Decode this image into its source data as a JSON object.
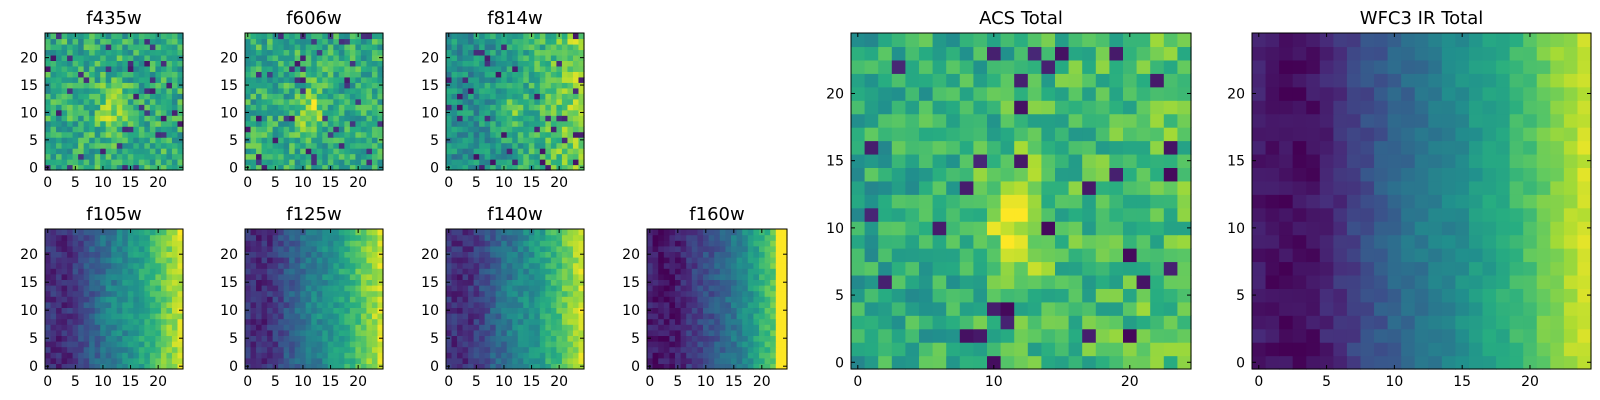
{
  "chart_data": [
    {
      "type": "heatmap",
      "title": "f435w",
      "colormap": "viridis",
      "grid": false,
      "pattern": "noise_center",
      "xticks": [
        0,
        5,
        10,
        15,
        20
      ],
      "yticks": [
        0,
        5,
        10,
        15,
        20
      ],
      "xlim": [
        0,
        25
      ],
      "ylim": [
        0,
        25
      ]
    },
    {
      "type": "heatmap",
      "title": "f606w",
      "colormap": "viridis",
      "grid": false,
      "pattern": "noise_center",
      "xticks": [
        0,
        5,
        10,
        15,
        20
      ],
      "yticks": [
        0,
        5,
        10,
        15,
        20
      ],
      "xlim": [
        0,
        25
      ],
      "ylim": [
        0,
        25
      ]
    },
    {
      "type": "heatmap",
      "title": "f814w",
      "colormap": "viridis",
      "grid": false,
      "pattern": "noise_right",
      "xticks": [
        0,
        5,
        10,
        15,
        20
      ],
      "yticks": [
        0,
        5,
        10,
        15,
        20
      ],
      "xlim": [
        0,
        25
      ],
      "ylim": [
        0,
        25
      ]
    },
    {
      "type": "heatmap",
      "title": "f105w",
      "colormap": "viridis",
      "grid": false,
      "pattern": "gradient",
      "xticks": [
        0,
        5,
        10,
        15,
        20
      ],
      "yticks": [
        0,
        5,
        10,
        15,
        20
      ],
      "xlim": [
        0,
        25
      ],
      "ylim": [
        0,
        25
      ]
    },
    {
      "type": "heatmap",
      "title": "f125w",
      "colormap": "viridis",
      "grid": false,
      "pattern": "gradient",
      "xticks": [
        0,
        5,
        10,
        15,
        20
      ],
      "yticks": [
        0,
        5,
        10,
        15,
        20
      ],
      "xlim": [
        0,
        25
      ],
      "ylim": [
        0,
        25
      ]
    },
    {
      "type": "heatmap",
      "title": "f140w",
      "colormap": "viridis",
      "grid": false,
      "pattern": "gradient",
      "xticks": [
        0,
        5,
        10,
        15,
        20
      ],
      "yticks": [
        0,
        5,
        10,
        15,
        20
      ],
      "xlim": [
        0,
        25
      ],
      "ylim": [
        0,
        25
      ]
    },
    {
      "type": "heatmap",
      "title": "f160w",
      "colormap": "viridis",
      "grid": false,
      "pattern": "gradient_dark",
      "xticks": [
        0,
        5,
        10,
        15,
        20
      ],
      "yticks": [
        0,
        5,
        10,
        15,
        20
      ],
      "xlim": [
        0,
        25
      ],
      "ylim": [
        0,
        25
      ]
    },
    {
      "type": "heatmap",
      "title": "ACS Total",
      "colormap": "viridis",
      "grid": false,
      "pattern": "acs",
      "xticks": [
        0,
        10,
        20
      ],
      "yticks": [
        0,
        5,
        10,
        15,
        20
      ],
      "xlim": [
        0,
        25
      ],
      "ylim": [
        0,
        25
      ]
    },
    {
      "type": "heatmap",
      "title": "WFC3 IR Total",
      "colormap": "viridis",
      "grid": false,
      "pattern": "ir",
      "xticks": [
        0,
        5,
        10,
        15,
        20
      ],
      "yticks": [
        0,
        5,
        10,
        15,
        20
      ],
      "xlim": [
        0,
        25
      ],
      "ylim": [
        0,
        25
      ]
    }
  ]
}
